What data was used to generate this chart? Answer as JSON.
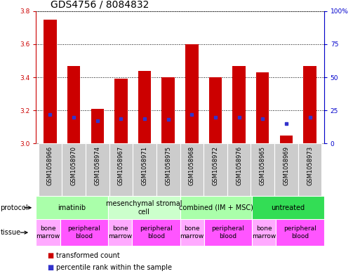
{
  "title": "GDS4756 / 8084832",
  "samples": [
    "GSM1058966",
    "GSM1058970",
    "GSM1058974",
    "GSM1058967",
    "GSM1058971",
    "GSM1058975",
    "GSM1058968",
    "GSM1058972",
    "GSM1058976",
    "GSM1058965",
    "GSM1058969",
    "GSM1058973"
  ],
  "transformed_counts": [
    3.75,
    3.47,
    3.21,
    3.39,
    3.44,
    3.4,
    3.6,
    3.4,
    3.47,
    3.43,
    3.05,
    3.47
  ],
  "percentile_ranks": [
    22,
    20,
    17,
    19,
    19,
    18,
    22,
    20,
    20,
    19,
    15,
    20
  ],
  "ylim_left": [
    3.0,
    3.8
  ],
  "yticks_left": [
    3.0,
    3.2,
    3.4,
    3.6,
    3.8
  ],
  "ylim_right": [
    0,
    100
  ],
  "yticks_right": [
    0,
    25,
    50,
    75,
    100
  ],
  "ytick_labels_right": [
    "0",
    "25",
    "50",
    "75",
    "100%"
  ],
  "bar_color": "#cc0000",
  "dot_color": "#3333cc",
  "bar_width": 0.55,
  "protocols": [
    {
      "label": "imatinib",
      "start": 0,
      "end": 3,
      "color": "#aaffaa"
    },
    {
      "label": "mesenchymal stromal\ncell",
      "start": 3,
      "end": 6,
      "color": "#ccffcc"
    },
    {
      "label": "combined (IM + MSC)",
      "start": 6,
      "end": 9,
      "color": "#aaffaa"
    },
    {
      "label": "untreated",
      "start": 9,
      "end": 12,
      "color": "#33dd55"
    }
  ],
  "tissues": [
    {
      "label": "bone\nmarrow",
      "start": 0,
      "end": 1,
      "color": "#ffaaff"
    },
    {
      "label": "peripheral\nblood",
      "start": 1,
      "end": 3,
      "color": "#ff55ff"
    },
    {
      "label": "bone\nmarrow",
      "start": 3,
      "end": 4,
      "color": "#ffaaff"
    },
    {
      "label": "peripheral\nblood",
      "start": 4,
      "end": 6,
      "color": "#ff55ff"
    },
    {
      "label": "bone\nmarrow",
      "start": 6,
      "end": 7,
      "color": "#ffaaff"
    },
    {
      "label": "peripheral\nblood",
      "start": 7,
      "end": 9,
      "color": "#ff55ff"
    },
    {
      "label": "bone\nmarrow",
      "start": 9,
      "end": 10,
      "color": "#ffaaff"
    },
    {
      "label": "peripheral\nblood",
      "start": 10,
      "end": 12,
      "color": "#ff55ff"
    }
  ],
  "legend_items": [
    {
      "label": "transformed count",
      "color": "#cc0000"
    },
    {
      "label": "percentile rank within the sample",
      "color": "#3333cc"
    }
  ],
  "background_color": "#ffffff",
  "title_fontsize": 10,
  "tick_fontsize": 6.5,
  "sample_fontsize": 6,
  "protocol_fontsize": 7,
  "tissue_fontsize": 6.5,
  "legend_fontsize": 7
}
